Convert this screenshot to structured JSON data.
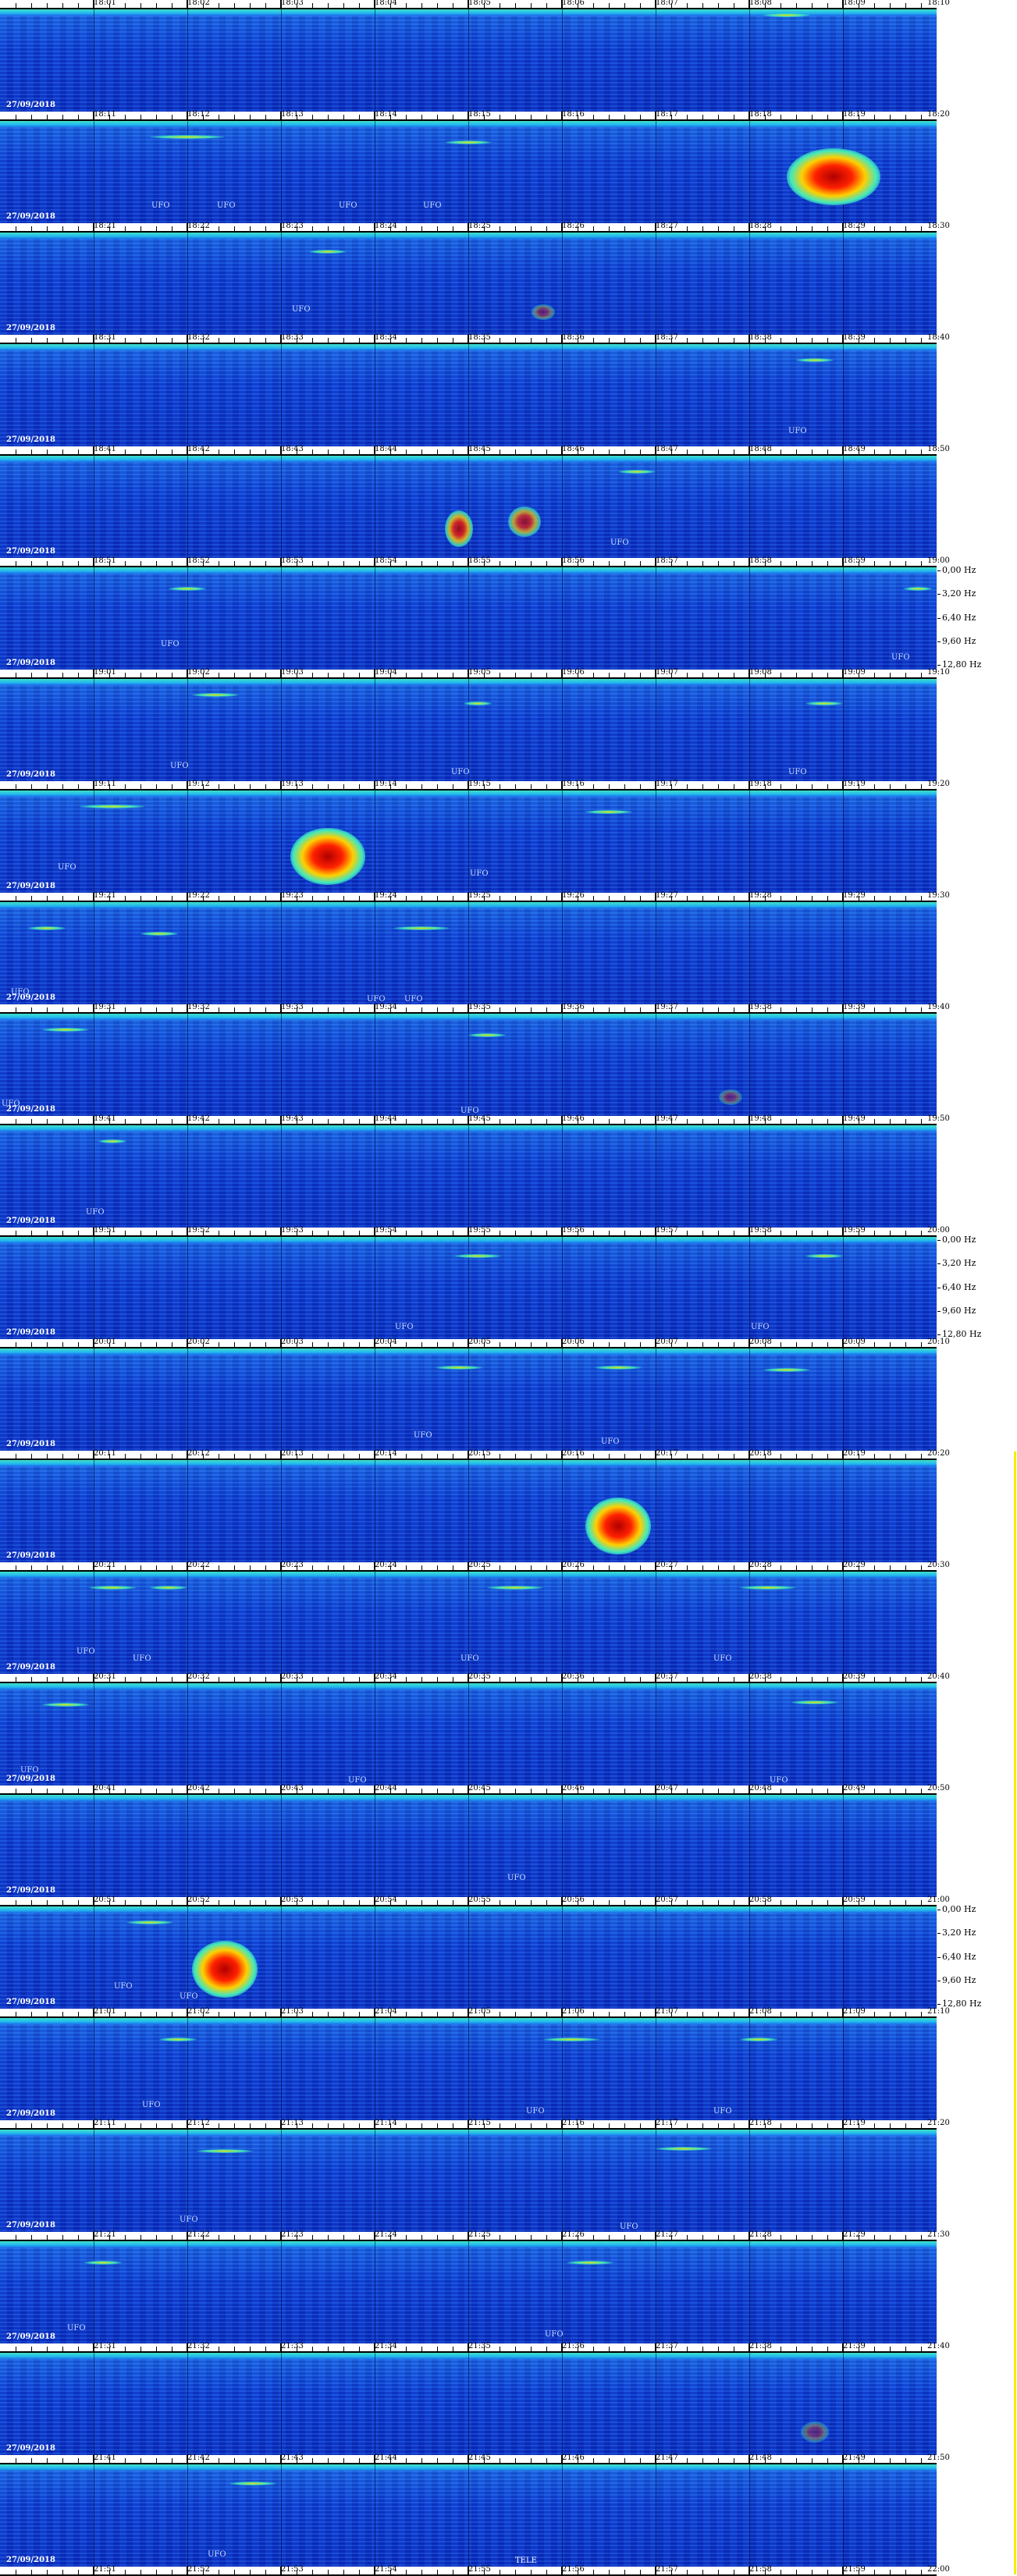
{
  "chart_data": {
    "type": "heatmap",
    "title": "",
    "date_label": "27/09/2018",
    "freq_axis_labels": [
      "0,00 Hz",
      "3,20 Hz",
      "6,40 Hz",
      "9,60 Hz",
      "12,80 Hz"
    ],
    "freq_axis_rows": [
      5,
      11,
      17
    ],
    "annotation_text": "UFO",
    "colorscale": [
      "#0a2fc4",
      "#1a66e6",
      "#40e0c0",
      "#e8e000",
      "#ff2000",
      "#b00000"
    ],
    "rows": [
      {
        "start": "18:00",
        "end": "18:10",
        "ticks": [
          "18:01",
          "18:02",
          "18:03",
          "18:04",
          "18:05",
          "18:06",
          "18:07",
          "18:08",
          "18:09"
        ],
        "end_label": "18:10",
        "ufo": [],
        "events": [],
        "streaks": [
          [
            0.84,
            0.05,
            0.05
          ]
        ]
      },
      {
        "start": "18:10",
        "end": "18:20",
        "ticks": [
          "18:11",
          "18:12",
          "18:13",
          "18:14",
          "18:15",
          "18:16",
          "18:17",
          "18:18",
          "18:19"
        ],
        "end_label": "18:20",
        "ufo": [
          [
            0.16,
            0.8
          ],
          [
            0.23,
            0.8
          ],
          [
            0.36,
            0.8
          ],
          [
            0.45,
            0.8
          ]
        ],
        "events": [
          [
            0.89,
            0.55,
            0.1,
            0.55,
            1.0
          ]
        ],
        "streaks": [
          [
            0.2,
            0.15,
            0.08
          ],
          [
            0.5,
            0.2,
            0.05
          ]
        ]
      },
      {
        "start": "18:20",
        "end": "18:30",
        "ticks": [
          "18:21",
          "18:22",
          "18:23",
          "18:24",
          "18:25",
          "18:26",
          "18:27",
          "18:28",
          "18:29"
        ],
        "end_label": "18:30",
        "ufo": [
          [
            0.31,
            0.72
          ]
        ],
        "events": [
          [
            0.58,
            0.78,
            0.025,
            0.15,
            0.4
          ]
        ],
        "streaks": [
          [
            0.35,
            0.18,
            0.04
          ]
        ]
      },
      {
        "start": "18:30",
        "end": "18:40",
        "ticks": [
          "18:31",
          "18:32",
          "18:33",
          "18:34",
          "18:35",
          "18:36",
          "18:37",
          "18:38",
          "18:39"
        ],
        "end_label": "18:40",
        "ufo": [
          [
            0.84,
            0.82
          ]
        ],
        "events": [],
        "streaks": [
          [
            0.87,
            0.15,
            0.04
          ]
        ]
      },
      {
        "start": "18:40",
        "end": "18:50",
        "ticks": [
          "18:41",
          "18:42",
          "18:43",
          "18:44",
          "18:45",
          "18:46",
          "18:47",
          "18:48",
          "18:49"
        ],
        "end_label": "18:50",
        "ufo": [
          [
            0.65,
            0.82
          ]
        ],
        "events": [
          [
            0.49,
            0.72,
            0.03,
            0.35,
            0.8
          ],
          [
            0.56,
            0.65,
            0.035,
            0.3,
            0.7
          ]
        ],
        "streaks": [
          [
            0.68,
            0.15,
            0.04
          ]
        ]
      },
      {
        "start": "18:50",
        "end": "19:00",
        "ticks": [
          "18:51",
          "18:52",
          "18:53",
          "18:54",
          "18:55",
          "18:56",
          "18:57",
          "18:58",
          "18:59"
        ],
        "end_label": "19:00",
        "ufo": [
          [
            0.17,
            0.72
          ],
          [
            0.95,
            0.85
          ]
        ],
        "events": [],
        "streaks": [
          [
            0.2,
            0.2,
            0.04
          ],
          [
            0.98,
            0.2,
            0.03
          ]
        ]
      },
      {
        "start": "19:00",
        "end": "19:10",
        "ticks": [
          "19:01",
          "19:02",
          "19:03",
          "19:04",
          "19:05",
          "19:06",
          "19:07",
          "19:08",
          "19:09"
        ],
        "end_label": "19:10",
        "ufo": [
          [
            0.18,
            0.82
          ],
          [
            0.48,
            0.88
          ],
          [
            0.84,
            0.88
          ]
        ],
        "events": [],
        "streaks": [
          [
            0.23,
            0.15,
            0.05
          ],
          [
            0.51,
            0.23,
            0.03
          ],
          [
            0.88,
            0.23,
            0.04
          ]
        ]
      },
      {
        "start": "19:10",
        "end": "19:20",
        "ticks": [
          "19:11",
          "19:12",
          "19:13",
          "19:14",
          "19:15",
          "19:16",
          "19:17",
          "19:18",
          "19:19"
        ],
        "end_label": "19:20",
        "ufo": [
          [
            0.06,
            0.72
          ],
          [
            0.5,
            0.78
          ]
        ],
        "events": [
          [
            0.35,
            0.65,
            0.08,
            0.55,
            1.0
          ]
        ],
        "streaks": [
          [
            0.12,
            0.15,
            0.07
          ],
          [
            0.65,
            0.2,
            0.05
          ]
        ]
      },
      {
        "start": "19:20",
        "end": "19:30",
        "ticks": [
          "19:21",
          "19:22",
          "19:23",
          "19:24",
          "19:25",
          "19:26",
          "19:27",
          "19:28",
          "19:29"
        ],
        "end_label": "19:30",
        "ufo": [
          [
            0.01,
            0.85
          ],
          [
            0.39,
            0.92
          ],
          [
            0.43,
            0.92
          ]
        ],
        "events": [],
        "streaks": [
          [
            0.05,
            0.25,
            0.04
          ],
          [
            0.17,
            0.3,
            0.04
          ],
          [
            0.45,
            0.25,
            0.06
          ]
        ]
      },
      {
        "start": "19:30",
        "end": "19:40",
        "ticks": [
          "19:31",
          "19:32",
          "19:33",
          "19:34",
          "19:35",
          "19:36",
          "19:37",
          "19:38",
          "19:39"
        ],
        "end_label": "19:40",
        "ufo": [
          [
            0.0,
            0.85
          ],
          [
            0.49,
            0.92
          ]
        ],
        "events": [
          [
            0.78,
            0.82,
            0.025,
            0.15,
            0.35
          ]
        ],
        "streaks": [
          [
            0.07,
            0.15,
            0.05
          ],
          [
            0.52,
            0.2,
            0.04
          ]
        ]
      },
      {
        "start": "19:40",
        "end": "19:50",
        "ticks": [
          "19:41",
          "19:42",
          "19:43",
          "19:44",
          "19:45",
          "19:46",
          "19:47",
          "19:48",
          "19:49"
        ],
        "end_label": "19:50",
        "ufo": [
          [
            0.09,
            0.82
          ]
        ],
        "events": [],
        "streaks": [
          [
            0.12,
            0.15,
            0.03
          ]
        ]
      },
      {
        "start": "19:50",
        "end": "20:00",
        "ticks": [
          "19:51",
          "19:52",
          "19:53",
          "19:54",
          "19:55",
          "19:56",
          "19:57",
          "19:58",
          "19:59"
        ],
        "end_label": "20:00",
        "ufo": [
          [
            0.42,
            0.85
          ],
          [
            0.8,
            0.85
          ]
        ],
        "events": [],
        "streaks": [
          [
            0.51,
            0.18,
            0.05
          ],
          [
            0.88,
            0.18,
            0.04
          ]
        ]
      },
      {
        "start": "20:00",
        "end": "20:10",
        "ticks": [
          "20:01",
          "20:02",
          "20:03",
          "20:04",
          "20:05",
          "20:06",
          "20:07",
          "20:08",
          "20:09"
        ],
        "end_label": "20:10",
        "ufo": [
          [
            0.44,
            0.82
          ],
          [
            0.64,
            0.88
          ]
        ],
        "events": [],
        "streaks": [
          [
            0.49,
            0.18,
            0.05
          ],
          [
            0.66,
            0.18,
            0.05
          ],
          [
            0.84,
            0.2,
            0.05
          ]
        ]
      },
      {
        "start": "20:10",
        "end": "20:20",
        "ticks": [
          "20:11",
          "20:12",
          "20:13",
          "20:14",
          "20:15",
          "20:16",
          "20:17",
          "20:18",
          "20:19"
        ],
        "end_label": "20:20",
        "ufo": [],
        "events": [
          [
            0.66,
            0.65,
            0.07,
            0.55,
            1.0
          ]
        ],
        "streaks": []
      },
      {
        "start": "20:20",
        "end": "20:30",
        "ticks": [
          "20:21",
          "20:22",
          "20:23",
          "20:24",
          "20:25",
          "20:26",
          "20:27",
          "20:28",
          "20:29"
        ],
        "end_label": "20:30",
        "ufo": [
          [
            0.08,
            0.75
          ],
          [
            0.14,
            0.82
          ],
          [
            0.49,
            0.82
          ],
          [
            0.76,
            0.82
          ]
        ],
        "events": [],
        "streaks": [
          [
            0.12,
            0.15,
            0.05
          ],
          [
            0.18,
            0.15,
            0.04
          ],
          [
            0.55,
            0.15,
            0.06
          ],
          [
            0.82,
            0.15,
            0.06
          ]
        ]
      },
      {
        "start": "20:30",
        "end": "20:40",
        "ticks": [
          "20:31",
          "20:32",
          "20:33",
          "20:34",
          "20:35",
          "20:36",
          "20:37",
          "20:38",
          "20:39"
        ],
        "end_label": "20:40",
        "ufo": [
          [
            0.02,
            0.82
          ],
          [
            0.37,
            0.92
          ],
          [
            0.82,
            0.92
          ]
        ],
        "events": [],
        "streaks": [
          [
            0.07,
            0.2,
            0.05
          ],
          [
            0.87,
            0.18,
            0.05
          ]
        ]
      },
      {
        "start": "20:40",
        "end": "20:50",
        "ticks": [
          "20:41",
          "20:42",
          "20:43",
          "20:44",
          "20:45",
          "20:46",
          "20:47",
          "20:48",
          "20:49"
        ],
        "end_label": "20:50",
        "ufo": [
          [
            0.54,
            0.78
          ]
        ],
        "events": [],
        "streaks": []
      },
      {
        "start": "20:50",
        "end": "21:00",
        "ticks": [
          "20:51",
          "20:52",
          "20:53",
          "20:54",
          "20:55",
          "20:56",
          "20:57",
          "20:58",
          "20:59"
        ],
        "end_label": "21:00",
        "ufo": [
          [
            0.12,
            0.75
          ],
          [
            0.19,
            0.85
          ]
        ],
        "events": [
          [
            0.24,
            0.62,
            0.07,
            0.55,
            1.0
          ]
        ],
        "streaks": [
          [
            0.16,
            0.15,
            0.05
          ]
        ]
      },
      {
        "start": "21:00",
        "end": "21:10",
        "ticks": [
          "21:01",
          "21:02",
          "21:03",
          "21:04",
          "21:05",
          "21:06",
          "21:07",
          "21:08",
          "21:09"
        ],
        "end_label": "21:10",
        "ufo": [
          [
            0.15,
            0.82
          ],
          [
            0.56,
            0.88
          ],
          [
            0.76,
            0.88
          ]
        ],
        "events": [],
        "streaks": [
          [
            0.19,
            0.2,
            0.04
          ],
          [
            0.61,
            0.2,
            0.06
          ],
          [
            0.81,
            0.2,
            0.04
          ]
        ]
      },
      {
        "start": "21:10",
        "end": "21:20",
        "ticks": [
          "21:11",
          "21:12",
          "21:13",
          "21:14",
          "21:15",
          "21:16",
          "21:17",
          "21:18",
          "21:19"
        ],
        "end_label": "21:20",
        "ufo": [
          [
            0.19,
            0.85
          ],
          [
            0.66,
            0.92
          ]
        ],
        "events": [],
        "streaks": [
          [
            0.24,
            0.2,
            0.06
          ],
          [
            0.73,
            0.18,
            0.06
          ]
        ]
      },
      {
        "start": "21:20",
        "end": "21:30",
        "ticks": [
          "21:21",
          "21:22",
          "21:23",
          "21:24",
          "21:25",
          "21:26",
          "21:27",
          "21:28",
          "21:29"
        ],
        "end_label": "21:30",
        "ufo": [
          [
            0.07,
            0.82
          ],
          [
            0.58,
            0.88
          ]
        ],
        "events": [],
        "streaks": [
          [
            0.11,
            0.2,
            0.04
          ],
          [
            0.63,
            0.2,
            0.05
          ]
        ]
      },
      {
        "start": "21:30",
        "end": "21:40",
        "ticks": [
          "21:31",
          "21:32",
          "21:33",
          "21:34",
          "21:35",
          "21:36",
          "21:37",
          "21:38",
          "21:39"
        ],
        "end_label": "21:40",
        "ufo": [],
        "events": [
          [
            0.87,
            0.78,
            0.03,
            0.2,
            0.35
          ]
        ],
        "streaks": []
      },
      {
        "start": "21:40",
        "end": "21:50",
        "ticks": [
          "21:41",
          "21:42",
          "21:43",
          "21:44",
          "21:45",
          "21:46",
          "21:47",
          "21:48",
          "21:49"
        ],
        "end_label": "21:50",
        "ufo": [
          [
            0.22,
            0.85
          ]
        ],
        "events": [],
        "streaks": [
          [
            0.27,
            0.18,
            0.05
          ]
        ]
      }
    ],
    "final_axis": {
      "ticks": [
        "21:51",
        "21:52",
        "21:53",
        "21:54",
        "21:55",
        "21:56",
        "21:57",
        "21:58",
        "21:59"
      ],
      "end_label": "22:00",
      "extra_label": "TELE",
      "extra_label_pos": 0.55
    }
  }
}
